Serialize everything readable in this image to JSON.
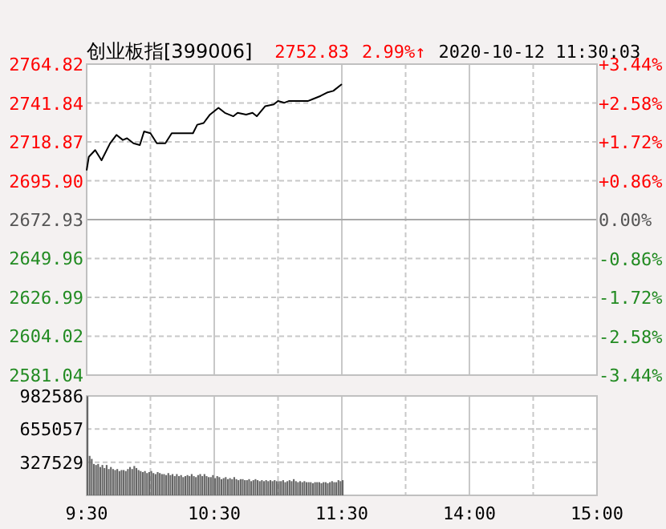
{
  "chart_data": [
    {
      "type": "line",
      "title": "创业板指[399006]",
      "annotations": [
        "2752.83",
        "2.99%↑",
        "2020-10-12 11:30:03"
      ],
      "series": [
        {
          "color": "#000000",
          "values": [
            2702,
            2710,
            null,
            null,
            2714,
            null,
            null,
            2708,
            null,
            null,
            null,
            2718,
            null,
            null,
            2723,
            null,
            null,
            2720,
            null,
            2721,
            null,
            null,
            2718,
            null,
            null,
            2717,
            null,
            2725,
            null,
            null,
            2724,
            null,
            null,
            2718,
            null,
            null,
            null,
            2718,
            null,
            null,
            2724,
            null,
            null,
            null,
            2724,
            null,
            null,
            null,
            2724,
            null,
            2724,
            null,
            2729,
            null,
            null,
            2730,
            null,
            null,
            2735,
            null,
            null,
            null,
            2739,
            null,
            null,
            2736,
            null,
            null,
            null,
            2734,
            null,
            2736,
            null,
            null,
            null,
            2735,
            null,
            null,
            2736,
            null,
            2734,
            null,
            null,
            null,
            2740,
            null,
            null,
            null,
            2741,
            null,
            2743,
            null,
            null,
            2742,
            null,
            2743,
            null,
            null,
            null,
            null,
            2743,
            null,
            null,
            null,
            2743,
            null,
            2744,
            null,
            null,
            null,
            2746,
            null,
            null,
            2748,
            null,
            null,
            2749,
            null,
            null,
            null,
            2753,
            null,
            null,
            null,
            null,
            null,
            null,
            null,
            null,
            null,
            null,
            null,
            null,
            null,
            null,
            null,
            null,
            null,
            null,
            null,
            null,
            null,
            null,
            null,
            null,
            null,
            null,
            null,
            null,
            null,
            null,
            null,
            null,
            null,
            null,
            null,
            null,
            null,
            null,
            null,
            null,
            null,
            null,
            null,
            null,
            null,
            null,
            null,
            null,
            null,
            null,
            null,
            null,
            null,
            null,
            null,
            null,
            null,
            null,
            null,
            null,
            null,
            null,
            null,
            null,
            null,
            null,
            null,
            null,
            null,
            null,
            null,
            null,
            null,
            null,
            null,
            null,
            null,
            null,
            null,
            null,
            null,
            null,
            null,
            null,
            null,
            null,
            null,
            null,
            null,
            null,
            null,
            null,
            null,
            null,
            null,
            null,
            null,
            null,
            null,
            null,
            null,
            null,
            null,
            null,
            null,
            null,
            null,
            null,
            null,
            null,
            null,
            null,
            null,
            null,
            null,
            null,
            null,
            null,
            null,
            null
          ]
        }
      ],
      "ylim": [
        2581.04,
        2764.82
      ],
      "yticks": [
        2581.04,
        2604.02,
        2626.99,
        2649.96,
        2672.93,
        {
          "value": 2695.9,
          "label": "2695.90"
        },
        2718.87,
        2741.84,
        2764.82
      ],
      "y2lim": [
        -3.44,
        3.44
      ],
      "y2ticks": [
        {
          "value": -3.44,
          "label": "-3.44%"
        },
        {
          "value": -2.58,
          "label": "-2.58%"
        },
        {
          "value": -1.72,
          "label": "-1.72%"
        },
        {
          "value": -0.86,
          "label": "-0.86%"
        },
        {
          "value": 0,
          "label": "0.00%"
        },
        {
          "value": 0.86,
          "label": "+0.86%"
        },
        {
          "value": 1.72,
          "label": "+1.72%"
        },
        {
          "value": 2.58,
          "label": "+2.58%"
        },
        {
          "value": 3.44,
          "label": "+3.44%"
        }
      ],
      "ref_lines": [
        {
          "axis": "y",
          "value": 2672.93,
          "label": null,
          "color": "#a8a8a8",
          "line_style": "solid"
        }
      ],
      "grid": true,
      "tick_labels": "y"
    },
    {
      "type": "bar",
      "categories": [
        "9:30",
        null,
        null,
        null,
        null,
        null,
        null,
        null,
        null,
        null,
        null,
        null,
        null,
        null,
        null,
        null,
        null,
        null,
        null,
        null,
        null,
        null,
        null,
        null,
        null,
        null,
        null,
        null,
        null,
        null,
        null,
        null,
        null,
        null,
        null,
        null,
        null,
        null,
        null,
        null,
        null,
        null,
        null,
        null,
        null,
        null,
        null,
        null,
        null,
        null,
        null,
        null,
        null,
        null,
        null,
        null,
        null,
        null,
        null,
        null,
        "10:30",
        null,
        null,
        null,
        null,
        null,
        null,
        null,
        null,
        null,
        null,
        null,
        null,
        null,
        null,
        null,
        null,
        null,
        null,
        null,
        null,
        null,
        null,
        null,
        null,
        null,
        null,
        null,
        null,
        null,
        null,
        null,
        null,
        null,
        null,
        null,
        null,
        null,
        null,
        null,
        null,
        null,
        null,
        null,
        null,
        null,
        null,
        null,
        null,
        null,
        null,
        null,
        null,
        null,
        null,
        null,
        null,
        null,
        null,
        null,
        "11:30",
        null,
        null,
        null,
        null,
        null,
        null,
        null,
        null,
        null,
        null,
        null,
        null,
        null,
        null,
        null,
        null,
        null,
        null,
        null,
        null,
        null,
        null,
        null,
        null,
        null,
        null,
        null,
        null,
        null,
        null,
        null,
        null,
        null,
        null,
        null,
        null,
        null,
        null,
        null,
        null,
        null,
        null,
        null,
        null,
        null,
        null,
        null,
        null,
        null,
        null,
        null,
        null,
        null,
        null,
        null,
        null,
        null,
        null,
        null,
        "14:00",
        null,
        null,
        null,
        null,
        null,
        null,
        null,
        null,
        null,
        null,
        null,
        null,
        null,
        null,
        null,
        null,
        null,
        null,
        null,
        null,
        null,
        null,
        null,
        null,
        null,
        null,
        null,
        null,
        null,
        null,
        null,
        null,
        null,
        null,
        null,
        null,
        null,
        null,
        null,
        null,
        null,
        null,
        null,
        null,
        null,
        null,
        null,
        null,
        null,
        null,
        null,
        null,
        null,
        null,
        null,
        null,
        null,
        null,
        null,
        "15:00"
      ],
      "series": [
        {
          "color": "#666666",
          "values": [
            980000,
            390000,
            360000,
            310000,
            300000,
            310000,
            280000,
            300000,
            270000,
            300000,
            260000,
            280000,
            260000,
            250000,
            260000,
            240000,
            250000,
            250000,
            240000,
            260000,
            280000,
            260000,
            290000,
            270000,
            250000,
            240000,
            230000,
            240000,
            220000,
            230000,
            240000,
            220000,
            210000,
            230000,
            220000,
            210000,
            210000,
            200000,
            220000,
            200000,
            210000,
            190000,
            210000,
            190000,
            200000,
            180000,
            190000,
            200000,
            190000,
            210000,
            190000,
            180000,
            200000,
            210000,
            190000,
            210000,
            190000,
            180000,
            180000,
            200000,
            170000,
            190000,
            180000,
            160000,
            170000,
            180000,
            160000,
            170000,
            160000,
            180000,
            160000,
            150000,
            160000,
            160000,
            150000,
            150000,
            160000,
            140000,
            150000,
            160000,
            150000,
            140000,
            150000,
            140000,
            150000,
            140000,
            150000,
            140000,
            150000,
            140000,
            140000,
            140000,
            150000,
            130000,
            140000,
            150000,
            140000,
            160000,
            140000,
            130000,
            140000,
            130000,
            140000,
            130000,
            130000,
            130000,
            120000,
            130000,
            130000,
            130000,
            120000,
            130000,
            130000,
            120000,
            130000,
            140000,
            130000,
            130000,
            150000,
            140000,
            150000,
            null,
            null,
            null,
            null,
            null,
            null,
            null,
            null,
            null,
            null,
            null,
            null,
            null,
            null,
            null,
            null,
            null,
            null,
            null,
            null,
            null,
            null,
            null,
            null,
            null,
            null,
            null,
            null,
            null,
            null,
            null,
            null,
            null,
            null,
            null,
            null,
            null,
            null,
            null,
            null,
            null,
            null,
            null,
            null,
            null,
            null,
            null,
            null,
            null,
            null,
            null,
            null,
            null,
            null,
            null,
            null,
            null,
            null,
            null,
            null,
            null,
            null,
            null,
            null,
            null,
            null,
            null,
            null,
            null,
            null,
            null,
            null,
            null,
            null,
            null,
            null,
            null,
            null,
            null,
            null,
            null,
            null,
            null,
            null,
            null,
            null,
            null,
            null,
            null,
            null,
            null,
            null,
            null,
            null,
            null,
            null,
            null,
            null,
            null,
            null,
            null,
            null,
            null,
            null,
            null,
            null,
            null,
            null,
            null,
            null,
            null,
            null,
            null,
            null,
            null,
            null,
            null,
            null,
            null,
            null
          ]
        }
      ],
      "ylim": [
        0,
        982586
      ],
      "yticks": [
        327529,
        655057,
        982586
      ],
      "grid": true
    }
  ]
}
